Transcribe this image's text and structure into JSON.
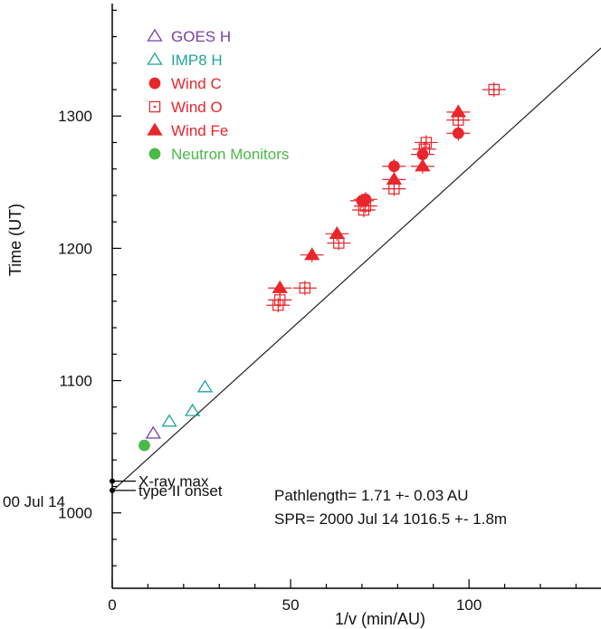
{
  "chart_data": {
    "type": "scatter",
    "xlabel": "1/v (min/AU)",
    "ylabel": "Time (UT)",
    "xlim": [
      0,
      137
    ],
    "ylim": [
      943,
      1385
    ],
    "x_ticks": [
      0,
      50,
      100
    ],
    "y_ticks": [
      1000,
      1100,
      1200,
      1300
    ],
    "date_label": "00 Jul 14",
    "legend_position": "top-left",
    "legend": [
      {
        "series": 0,
        "label": "GOES H"
      },
      {
        "series": 1,
        "label": "IMP8 H"
      },
      {
        "series": 2,
        "label": "Wind C"
      },
      {
        "series": 3,
        "label": "Wind O"
      },
      {
        "series": 4,
        "label": "Wind Fe"
      },
      {
        "series": 5,
        "label": "Neutron Monitors"
      }
    ],
    "series": [
      {
        "name": "GOES H",
        "marker": "triangle-open",
        "color": "#7b3fa0",
        "points": [
          [
            11.5,
            1060
          ]
        ]
      },
      {
        "name": "IMP8 H",
        "marker": "triangle-open",
        "color": "#1fa59a",
        "points": [
          [
            16,
            1069
          ],
          [
            22.5,
            1077
          ],
          [
            26,
            1095
          ]
        ]
      },
      {
        "name": "Wind C",
        "marker": "circle-filled",
        "color": "#e8262c",
        "points": [
          [
            70,
            1236
          ],
          [
            71,
            1237
          ],
          [
            79,
            1262
          ],
          [
            87,
            1271
          ],
          [
            97,
            1287
          ]
        ]
      },
      {
        "name": "Wind O",
        "marker": "square-open-dot",
        "color": "#e8262c",
        "points": [
          [
            46.5,
            1157
          ],
          [
            47,
            1161
          ],
          [
            54,
            1170
          ],
          [
            63.5,
            1204
          ],
          [
            70.5,
            1229
          ],
          [
            71,
            1232
          ],
          [
            79,
            1245
          ],
          [
            87.5,
            1275
          ],
          [
            88,
            1280
          ],
          [
            97,
            1297
          ],
          [
            107,
            1320
          ]
        ]
      },
      {
        "name": "Wind Fe",
        "marker": "triangle-filled",
        "color": "#e8262c",
        "points": [
          [
            47,
            1170
          ],
          [
            56,
            1195
          ],
          [
            63,
            1211
          ],
          [
            79,
            1252
          ],
          [
            87,
            1262
          ],
          [
            97,
            1303
          ]
        ]
      },
      {
        "name": "Neutron Monitors",
        "marker": "circle-filled",
        "color": "#4cb848",
        "points": [
          [
            9,
            1051
          ]
        ]
      }
    ],
    "fit_line": {
      "intercept": 1016.5,
      "slope": 2.445
    },
    "reference_events": [
      {
        "label": "X-ray max",
        "time": 1024
      },
      {
        "label": "type II onset",
        "time": 1017
      }
    ],
    "annotations": [
      "Pathlength= 1.71 +- 0.03 AU",
      "SPR= 2000 Jul 14 1016.5 +- 1.8m"
    ]
  }
}
